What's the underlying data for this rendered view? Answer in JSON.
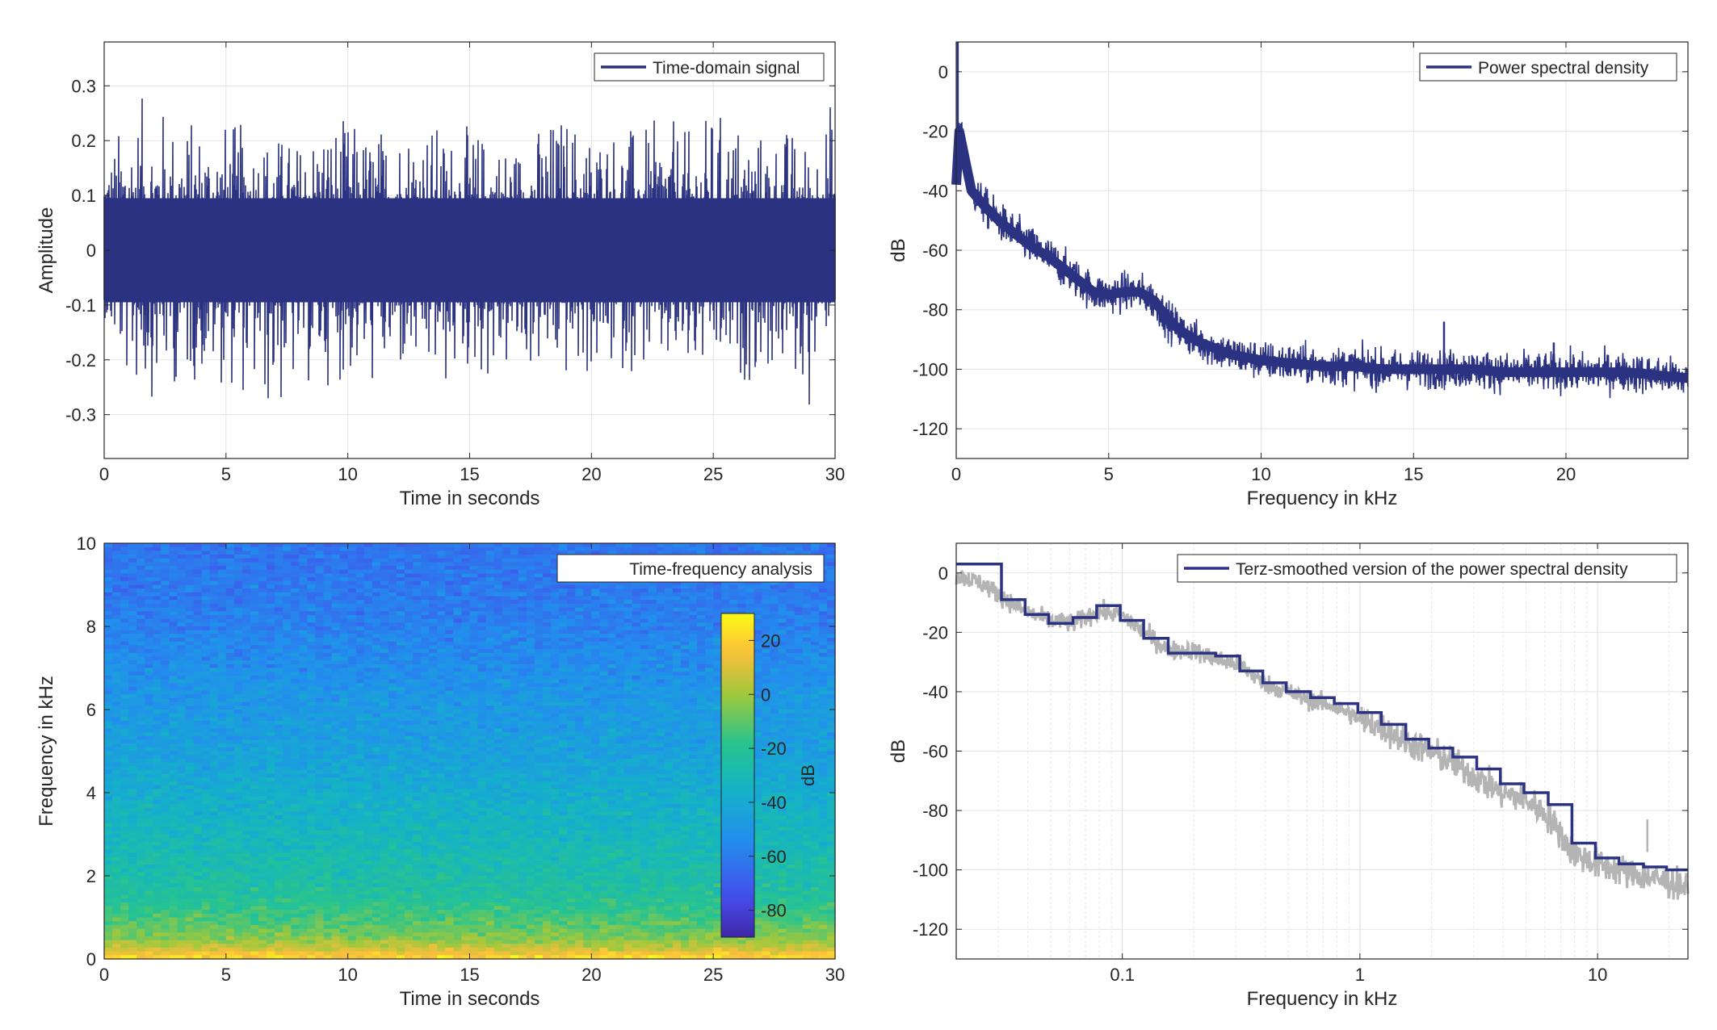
{
  "chart_data": [
    {
      "type": "line",
      "legend": [
        "Time-domain signal"
      ],
      "xlabel": "Time in seconds",
      "ylabel": "Amplitude",
      "xlim": [
        0,
        30
      ],
      "ylim": [
        -0.38,
        0.38
      ],
      "xticks": [
        0,
        5,
        10,
        15,
        20,
        25,
        30
      ],
      "yticks": [
        -0.3,
        -0.2,
        -0.1,
        0,
        0.1,
        0.2,
        0.3
      ],
      "grid": true,
      "legend_position": "top-right",
      "line_color": "#2b3282",
      "series": [
        {
          "name": "Time-domain signal",
          "envelope": {
            "x": [
              0,
              1,
              2,
              3,
              4,
              5,
              6,
              7,
              8,
              9,
              10,
              11,
              12,
              13,
              14,
              15,
              16,
              17,
              18,
              19,
              20,
              21,
              22,
              23,
              24,
              25,
              26,
              27,
              28,
              29,
              30
            ],
            "upper": [
              0.16,
              0.27,
              0.29,
              0.24,
              0.25,
              0.24,
              0.23,
              0.22,
              0.2,
              0.26,
              0.24,
              0.22,
              0.25,
              0.26,
              0.22,
              0.23,
              0.21,
              0.2,
              0.24,
              0.26,
              0.23,
              0.24,
              0.22,
              0.25,
              0.22,
              0.26,
              0.25,
              0.22,
              0.23,
              0.2,
              0.3
            ],
            "lower": [
              -0.12,
              -0.26,
              -0.27,
              -0.25,
              -0.24,
              -0.25,
              -0.28,
              -0.32,
              -0.26,
              -0.25,
              -0.24,
              -0.26,
              -0.24,
              -0.25,
              -0.27,
              -0.23,
              -0.25,
              -0.22,
              -0.23,
              -0.25,
              -0.24,
              -0.23,
              -0.22,
              -0.24,
              -0.25,
              -0.24,
              -0.25,
              -0.23,
              -0.23,
              -0.3,
              -0.07
            ]
          }
        }
      ]
    },
    {
      "type": "line",
      "legend": [
        "Power spectral density"
      ],
      "xlabel": "Frequency in kHz",
      "ylabel": "dB",
      "xlim": [
        0,
        24
      ],
      "ylim": [
        -130,
        10
      ],
      "xticks": [
        0,
        5,
        10,
        15,
        20
      ],
      "yticks": [
        -120,
        -100,
        -80,
        -60,
        -40,
        -20,
        0
      ],
      "grid": true,
      "legend_position": "top-right",
      "line_color": "#2b3282",
      "series": [
        {
          "name": "Power spectral density",
          "x": [
            0,
            0.1,
            0.3,
            0.5,
            1,
            1.5,
            2,
            2.5,
            3,
            3.5,
            4,
            4.5,
            5,
            5.5,
            6,
            6.5,
            7,
            7.5,
            8,
            8.5,
            9,
            10,
            11,
            12,
            13,
            14,
            15,
            16,
            17,
            18,
            19,
            20,
            21,
            22,
            23,
            24
          ],
          "y": [
            -38,
            -20,
            -30,
            -40,
            -46,
            -51,
            -55,
            -59,
            -62,
            -66,
            -70,
            -74,
            -75,
            -74,
            -74,
            -77,
            -84,
            -88,
            -91,
            -93,
            -95,
            -97,
            -98,
            -99,
            -99,
            -100,
            -100,
            -100,
            -100,
            -101,
            -101,
            -101,
            -101,
            -101,
            -102,
            -103
          ],
          "spikes": [
            {
              "x": 0.05,
              "y": 10
            },
            {
              "x": 16,
              "y": -84
            },
            {
              "x": 19.6,
              "y": -91
            }
          ]
        }
      ]
    },
    {
      "type": "heatmap",
      "legend": [
        "Time-frequency analysis"
      ],
      "xlabel": "Time in seconds",
      "ylabel": "Frequency in kHz",
      "colorbar_label": "dB",
      "xlim": [
        0,
        30
      ],
      "ylim": [
        0,
        10
      ],
      "xticks": [
        0,
        5,
        10,
        15,
        20,
        25,
        30
      ],
      "yticks": [
        0,
        2,
        4,
        6,
        8,
        10
      ],
      "colorbar_ticks": [
        -80,
        -60,
        -40,
        -20,
        0,
        20
      ],
      "colorbar_range": [
        -90,
        30
      ],
      "profile": {
        "freq_khz": [
          0,
          0.2,
          0.5,
          1,
          1.5,
          2,
          3,
          4,
          5,
          6,
          7,
          8,
          9,
          10
        ],
        "level_db": [
          25,
          10,
          -4,
          -14,
          -22,
          -26,
          -32,
          -38,
          -45,
          -48,
          -53,
          -58,
          -61,
          -62
        ]
      }
    },
    {
      "type": "line",
      "legend": [
        "Terz-smoothed version of the power spectral density"
      ],
      "xlabel": "Frequency in kHz",
      "ylabel": "dB",
      "xscale": "log",
      "xlim": [
        0.02,
        24
      ],
      "ylim": [
        -130,
        10
      ],
      "xticks": [
        0.1,
        1,
        10
      ],
      "yticks": [
        -120,
        -100,
        -80,
        -60,
        -40,
        -20,
        0
      ],
      "grid": true,
      "legend_position": "top-right",
      "series": [
        {
          "name": "Terz-smoothed version of the power spectral density",
          "color": "#2b3282",
          "step_x": [
            0.02,
            0.031,
            0.039,
            0.049,
            0.062,
            0.078,
            0.098,
            0.123,
            0.156,
            0.195,
            0.247,
            0.312,
            0.39,
            0.49,
            0.62,
            0.78,
            0.98,
            1.23,
            1.56,
            1.95,
            2.46,
            3.1,
            3.9,
            4.9,
            6.2,
            7.8,
            9.8,
            12.3,
            15.6,
            19.5,
            24
          ],
          "step_y": [
            3,
            -9,
            -14,
            -17,
            -15,
            -11,
            -16,
            -22,
            -27,
            -27,
            -28,
            -33,
            -37,
            -40,
            -42,
            -44,
            -47,
            -51,
            -56,
            -59,
            -62,
            -66,
            -71,
            -74,
            -78,
            -91,
            -96,
            -98,
            -99,
            -100
          ]
        },
        {
          "name": "",
          "color": "#b4b4b4",
          "x": [
            0.02,
            0.025,
            0.031,
            0.039,
            0.049,
            0.062,
            0.078,
            0.098,
            0.123,
            0.156,
            0.195,
            0.247,
            0.312,
            0.39,
            0.49,
            0.62,
            0.78,
            0.98,
            1.23,
            1.56,
            1.95,
            2.46,
            3.1,
            3.9,
            4.9,
            6.2,
            7.8,
            9.8,
            12.3,
            15.6,
            19.5,
            24
          ],
          "y": [
            -1,
            -3,
            -8,
            -13,
            -16,
            -17,
            -13,
            -14,
            -20,
            -26,
            -26,
            -29,
            -31,
            -37,
            -40,
            -43,
            -45,
            -49,
            -52,
            -57,
            -60,
            -64,
            -69,
            -74,
            -76,
            -82,
            -94,
            -98,
            -100,
            -102,
            -104,
            -106
          ]
        }
      ]
    }
  ]
}
